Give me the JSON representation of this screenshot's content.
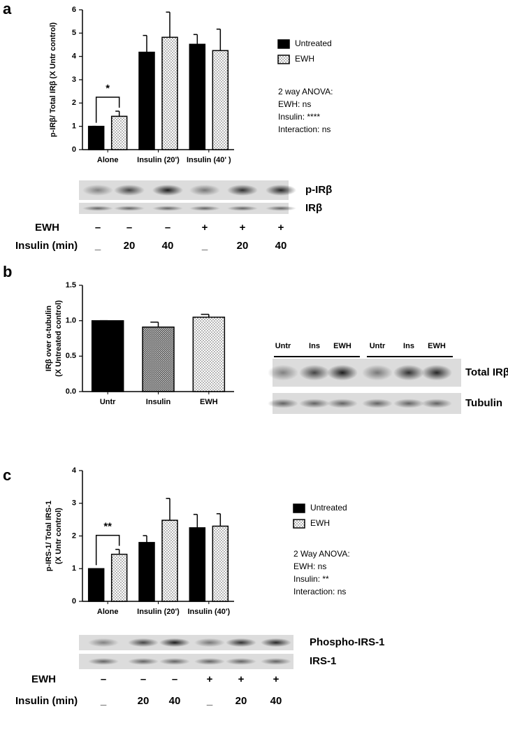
{
  "chart_data": [
    {
      "type": "bar",
      "panel": "a",
      "ylabel": [
        "p-IRβ/ Total IRβ (X Untr control)"
      ],
      "categories": [
        "Alone",
        "Insulin (20')",
        "Insulin (40' )"
      ],
      "series": [
        {
          "name": "Untreated",
          "color": "#000000",
          "pattern": "solid",
          "values": [
            1.0,
            4.18,
            4.52
          ],
          "errors": [
            0,
            0.72,
            0.42
          ]
        },
        {
          "name": "EWH",
          "color": "#ffffff",
          "pattern": "dots",
          "values": [
            1.43,
            4.82,
            4.25
          ],
          "errors": [
            0.22,
            1.08,
            0.92
          ]
        }
      ],
      "ylim": [
        0,
        6
      ],
      "yticks": [
        0,
        1,
        2,
        3,
        4,
        5,
        6
      ],
      "significance": "*",
      "annotations": [
        "2 way ANOVA:",
        "EWH: ns",
        "Insulin: ****",
        "Interaction: ns"
      ],
      "blot": {
        "bands": [
          "p-IRβ",
          "IRβ"
        ],
        "rows": [
          {
            "label": "EWH",
            "lanes": [
              "–",
              "–",
              "–",
              "+",
              "+",
              "+"
            ]
          },
          {
            "label": "Insulin (min)",
            "lanes": [
              "_",
              "20",
              "40",
              "_",
              "20",
              "40"
            ]
          }
        ]
      }
    },
    {
      "type": "bar",
      "panel": "b",
      "ylabel": [
        "IRβ over α-tubulin",
        "(X Untreated control)"
      ],
      "categories": [
        "Untr",
        "Insulin",
        "EWH"
      ],
      "series": [
        {
          "colors": [
            "#000000",
            "#444444",
            "#ffffff"
          ],
          "patterns": [
            "solid",
            "crosshatch",
            "dots"
          ],
          "values": [
            1.0,
            0.91,
            1.05
          ],
          "errors": [
            0,
            0.07,
            0.04
          ]
        }
      ],
      "ylim": [
        0,
        1.5
      ],
      "yticks": [
        {
          "value": 0,
          "label": "0.0"
        },
        {
          "value": 0.5,
          "label": "0.5"
        },
        {
          "value": 1,
          "label": "1.0"
        },
        {
          "value": 1.5,
          "label": "1.5"
        }
      ],
      "blot": {
        "lanes": [
          "Untr",
          "Ins",
          "EWH",
          "Untr",
          "Ins",
          "EWH"
        ],
        "bands": [
          "Total IRβ",
          "Tubulin"
        ]
      }
    },
    {
      "type": "bar",
      "panel": "c",
      "ylabel": [
        "p-IRS-1/ Total IRS-1",
        "(X Untr control)"
      ],
      "categories": [
        "Alone",
        "Insulin (20')",
        "Insulin (40')"
      ],
      "series": [
        {
          "name": "Untreated",
          "color": "#000000",
          "pattern": "solid",
          "values": [
            1.0,
            1.8,
            2.25
          ],
          "errors": [
            0,
            0.21,
            0.41
          ]
        },
        {
          "name": "EWH",
          "color": "#ffffff",
          "pattern": "dots",
          "values": [
            1.44,
            2.48,
            2.3
          ],
          "errors": [
            0.15,
            0.67,
            0.38
          ]
        }
      ],
      "ylim": [
        0,
        4
      ],
      "yticks": [
        0,
        1,
        2,
        3,
        4
      ],
      "significance": "**",
      "annotations": [
        "2 Way ANOVA:",
        "EWH: ns",
        "Insulin: **",
        "Interaction: ns"
      ],
      "blot": {
        "bands": [
          "Phospho-IRS-1",
          "IRS-1"
        ],
        "rows": [
          {
            "label": "EWH",
            "lanes": [
              "–",
              "–",
              "–",
              "+",
              "+",
              "+"
            ]
          },
          {
            "label": "Insulin (min)",
            "lanes": [
              "_",
              "20",
              "40",
              "_",
              "20",
              "40"
            ]
          }
        ]
      }
    }
  ]
}
